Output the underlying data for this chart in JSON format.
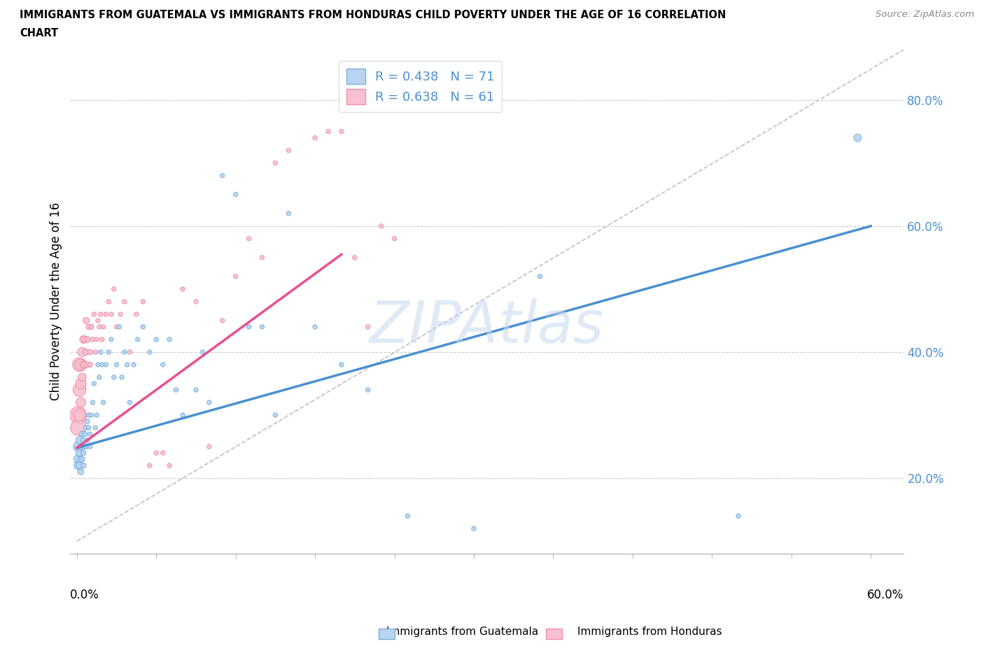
{
  "title_line1": "IMMIGRANTS FROM GUATEMALA VS IMMIGRANTS FROM HONDURAS CHILD POVERTY UNDER THE AGE OF 16 CORRELATION",
  "title_line2": "CHART",
  "source": "Source: ZipAtlas.com",
  "ylabel": "Child Poverty Under the Age of 16",
  "ytick_vals": [
    0.2,
    0.4,
    0.6,
    0.8
  ],
  "ytick_labels": [
    "20.0%",
    "40.0%",
    "60.0%",
    "80.0%"
  ],
  "xlim": [
    -0.005,
    0.625
  ],
  "ylim": [
    0.08,
    0.88
  ],
  "legend_r1": "R = 0.438   N = 71",
  "legend_r2": "R = 0.638   N = 61",
  "color_guatemala_face": "#b8d4f0",
  "color_guatemala_edge": "#7ab0e0",
  "color_honduras_face": "#f8c0d0",
  "color_honduras_edge": "#f090a8",
  "color_line_guatemala": "#4a90d0",
  "color_line_honduras": "#e85090",
  "watermark": "ZIPAtlas",
  "watermark_color": "#c8daf0",
  "guatemala_trend_x0": 0.0,
  "guatemala_trend_y0": 0.248,
  "guatemala_trend_x1": 0.6,
  "guatemala_trend_y1": 0.6,
  "honduras_trend_x0": 0.0,
  "honduras_trend_y0": 0.248,
  "honduras_trend_x1": 0.2,
  "honduras_trend_y1": 0.555,
  "ref_line_x0": 0.0,
  "ref_line_y0": 0.1,
  "ref_line_x1": 0.625,
  "ref_line_y1": 0.88,
  "guatemala_x": [
    0.001,
    0.001,
    0.001,
    0.002,
    0.002,
    0.002,
    0.003,
    0.003,
    0.003,
    0.004,
    0.004,
    0.004,
    0.005,
    0.005,
    0.005,
    0.006,
    0.006,
    0.007,
    0.007,
    0.008,
    0.008,
    0.009,
    0.009,
    0.01,
    0.01,
    0.011,
    0.012,
    0.013,
    0.014,
    0.015,
    0.016,
    0.017,
    0.018,
    0.019,
    0.02,
    0.022,
    0.024,
    0.026,
    0.028,
    0.03,
    0.032,
    0.034,
    0.036,
    0.038,
    0.04,
    0.043,
    0.046,
    0.05,
    0.055,
    0.06,
    0.065,
    0.07,
    0.075,
    0.08,
    0.09,
    0.095,
    0.1,
    0.11,
    0.12,
    0.13,
    0.14,
    0.15,
    0.16,
    0.18,
    0.2,
    0.22,
    0.25,
    0.3,
    0.35,
    0.5,
    0.59
  ],
  "guatemala_y": [
    0.25,
    0.23,
    0.22,
    0.26,
    0.24,
    0.22,
    0.25,
    0.23,
    0.21,
    0.25,
    0.27,
    0.23,
    0.26,
    0.24,
    0.22,
    0.27,
    0.25,
    0.28,
    0.25,
    0.29,
    0.26,
    0.3,
    0.28,
    0.27,
    0.25,
    0.3,
    0.32,
    0.35,
    0.28,
    0.3,
    0.38,
    0.36,
    0.4,
    0.38,
    0.32,
    0.38,
    0.4,
    0.42,
    0.36,
    0.38,
    0.44,
    0.36,
    0.4,
    0.38,
    0.32,
    0.38,
    0.42,
    0.44,
    0.4,
    0.42,
    0.38,
    0.42,
    0.34,
    0.3,
    0.34,
    0.4,
    0.32,
    0.68,
    0.65,
    0.44,
    0.44,
    0.3,
    0.62,
    0.44,
    0.38,
    0.34,
    0.14,
    0.12,
    0.52,
    0.14,
    0.74
  ],
  "guatemala_size": [
    100,
    80,
    70,
    60,
    55,
    50,
    45,
    42,
    38,
    35,
    32,
    30,
    30,
    28,
    27,
    26,
    25,
    24,
    23,
    22,
    21,
    20,
    20,
    20,
    20,
    20,
    20,
    20,
    20,
    20,
    20,
    20,
    20,
    20,
    20,
    20,
    20,
    20,
    20,
    20,
    20,
    20,
    20,
    20,
    20,
    20,
    20,
    20,
    20,
    20,
    20,
    20,
    20,
    20,
    20,
    20,
    20,
    20,
    20,
    20,
    20,
    20,
    20,
    20,
    20,
    20,
    20,
    20,
    20,
    20,
    60
  ],
  "honduras_x": [
    0.001,
    0.001,
    0.002,
    0.002,
    0.002,
    0.003,
    0.003,
    0.003,
    0.004,
    0.004,
    0.005,
    0.005,
    0.006,
    0.006,
    0.007,
    0.007,
    0.008,
    0.008,
    0.009,
    0.01,
    0.01,
    0.011,
    0.012,
    0.013,
    0.014,
    0.015,
    0.016,
    0.017,
    0.018,
    0.019,
    0.02,
    0.022,
    0.024,
    0.026,
    0.028,
    0.03,
    0.033,
    0.036,
    0.04,
    0.045,
    0.05,
    0.055,
    0.06,
    0.065,
    0.07,
    0.08,
    0.09,
    0.1,
    0.11,
    0.12,
    0.13,
    0.14,
    0.15,
    0.16,
    0.18,
    0.19,
    0.2,
    0.21,
    0.22,
    0.23,
    0.24
  ],
  "honduras_y": [
    0.3,
    0.28,
    0.38,
    0.34,
    0.3,
    0.38,
    0.35,
    0.32,
    0.4,
    0.36,
    0.42,
    0.38,
    0.42,
    0.38,
    0.45,
    0.4,
    0.42,
    0.38,
    0.44,
    0.4,
    0.38,
    0.44,
    0.42,
    0.46,
    0.4,
    0.42,
    0.45,
    0.44,
    0.46,
    0.42,
    0.44,
    0.46,
    0.48,
    0.46,
    0.5,
    0.44,
    0.46,
    0.48,
    0.4,
    0.46,
    0.48,
    0.22,
    0.24,
    0.24,
    0.22,
    0.5,
    0.48,
    0.25,
    0.45,
    0.52,
    0.58,
    0.55,
    0.7,
    0.72,
    0.74,
    0.75,
    0.75,
    0.55,
    0.44,
    0.6,
    0.58
  ],
  "honduras_size": [
    300,
    250,
    200,
    180,
    160,
    140,
    120,
    100,
    85,
    70,
    60,
    55,
    50,
    45,
    42,
    38,
    35,
    32,
    30,
    28,
    26,
    24,
    22,
    21,
    20,
    20,
    20,
    20,
    20,
    20,
    20,
    20,
    20,
    20,
    20,
    20,
    20,
    20,
    20,
    20,
    20,
    20,
    20,
    20,
    20,
    20,
    20,
    20,
    20,
    20,
    20,
    20,
    20,
    20,
    20,
    20,
    20,
    20,
    20,
    20,
    20
  ]
}
